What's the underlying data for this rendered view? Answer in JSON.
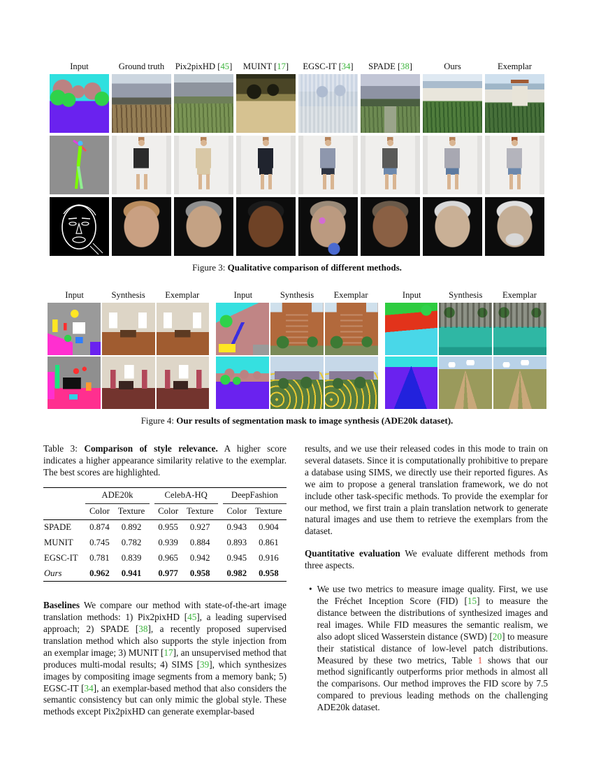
{
  "colors": {
    "citation_green": "#3cb53c",
    "ref_red": "#e04a3a"
  },
  "figure3": {
    "headers": [
      [
        {
          "t": "Input"
        }
      ],
      [
        {
          "t": "Ground truth"
        }
      ],
      [
        {
          "t": "Pix2pixHD ["
        },
        {
          "t": "45",
          "s": "g"
        },
        {
          "t": "]"
        }
      ],
      [
        {
          "t": "MUINT ["
        },
        {
          "t": "17",
          "s": "g"
        },
        {
          "t": "]"
        }
      ],
      [
        {
          "t": "EGSC-IT ["
        },
        {
          "t": "34",
          "s": "g"
        },
        {
          "t": "]"
        }
      ],
      [
        {
          "t": "SPADE ["
        },
        {
          "t": "38",
          "s": "g"
        },
        {
          "t": "]"
        }
      ],
      [
        {
          "t": "Ours"
        }
      ],
      [
        {
          "t": "Exemplar"
        }
      ]
    ],
    "caption": [
      {
        "t": "Figure 3: "
      },
      {
        "t": "Qualitative comparison of different methods.",
        "s": "b"
      }
    ]
  },
  "figure4": {
    "headers": [
      "Input",
      "Synthesis",
      "Exemplar"
    ],
    "caption": [
      {
        "t": "Figure 4: "
      },
      {
        "t": "Our results of segmentation mask to image synthesis (ADE20k dataset).",
        "s": "b"
      }
    ]
  },
  "table3": {
    "caption": [
      {
        "t": "Table 3: "
      },
      {
        "t": "Comparison of style relevance.",
        "s": "b"
      },
      {
        "t": " A higher score indicates a higher appearance similarity relative to the exemplar. The best scores are highlighted."
      }
    ],
    "groups": [
      "ADE20k",
      "CelebA-HQ",
      "DeepFashion"
    ],
    "subheaders": [
      "Color",
      "Texture",
      "Color",
      "Texture",
      "Color",
      "Texture"
    ],
    "rows": [
      {
        "name": "SPADE",
        "values": [
          "0.874",
          "0.892",
          "0.955",
          "0.927",
          "0.943",
          "0.904"
        ]
      },
      {
        "name": "MUNIT",
        "values": [
          "0.745",
          "0.782",
          "0.939",
          "0.884",
          "0.893",
          "0.861"
        ]
      },
      {
        "name": "EGSC-IT",
        "values": [
          "0.781",
          "0.839",
          "0.965",
          "0.942",
          "0.945",
          "0.916"
        ]
      },
      {
        "name": "Ours",
        "values": [
          "0.962",
          "0.941",
          "0.977",
          "0.958",
          "0.982",
          "0.958"
        ]
      }
    ]
  },
  "text": {
    "baselines": [
      {
        "t": "Baselines",
        "s": "b"
      },
      {
        "t": "  We compare our method with state-of-the-art image translation methods: 1) Pix2pixHD ["
      },
      {
        "t": "45",
        "s": "g"
      },
      {
        "t": "], a leading supervised approach; 2) SPADE ["
      },
      {
        "t": "38",
        "s": "g"
      },
      {
        "t": "], a recently proposed supervised translation method which also supports the style injection from an exemplar image; 3) MUNIT ["
      },
      {
        "t": "17",
        "s": "g"
      },
      {
        "t": "], an unsupervised method that produces multi-modal results; 4) SIMS ["
      },
      {
        "t": "39",
        "s": "g"
      },
      {
        "t": "], which synthesizes images by compositing image segments from a memory bank; 5) EGSC-IT ["
      },
      {
        "t": "34",
        "s": "g"
      },
      {
        "t": "], an exemplar-based method that also considers the semantic consistency but can only mimic the global style. These methods except Pix2pixHD can generate exemplar-based"
      }
    ],
    "right_para1": [
      {
        "t": "results, and we use their released codes in this mode to train on several datasets. Since it is computationally prohibitive to prepare a database using SIMS, we directly use their reported figures. As we aim to propose a general translation framework, we do not include other task-specific methods. To provide the exemplar for our method, we first train a plain translation network to generate natural images and use them to retrieve the exemplars from the dataset."
      }
    ],
    "quantitative": [
      {
        "t": "Quantitative evaluation",
        "s": "b"
      },
      {
        "t": "  We evaluate different methods from three aspects."
      }
    ],
    "bullet_glyph": "•",
    "bullet1": [
      {
        "t": "We use two metrics to measure image quality. First, we use the Fréchet Inception Score (FID) ["
      },
      {
        "t": "15",
        "s": "g"
      },
      {
        "t": "] to measure the distance between the distributions of synthesized images and real images. While FID measures the semantic realism, we also adopt sliced Wasserstein distance (SWD) ["
      },
      {
        "t": "20",
        "s": "g"
      },
      {
        "t": "] to measure their statistical distance of low-level patch distributions. Measured by these two metrics, Table "
      },
      {
        "t": "1",
        "s": "r"
      },
      {
        "t": " shows that our method significantly outperforms prior methods in almost all the comparisons. Our method improves the FID score by 7.5 compared to previous leading methods on the challenging ADE20k dataset."
      }
    ]
  }
}
